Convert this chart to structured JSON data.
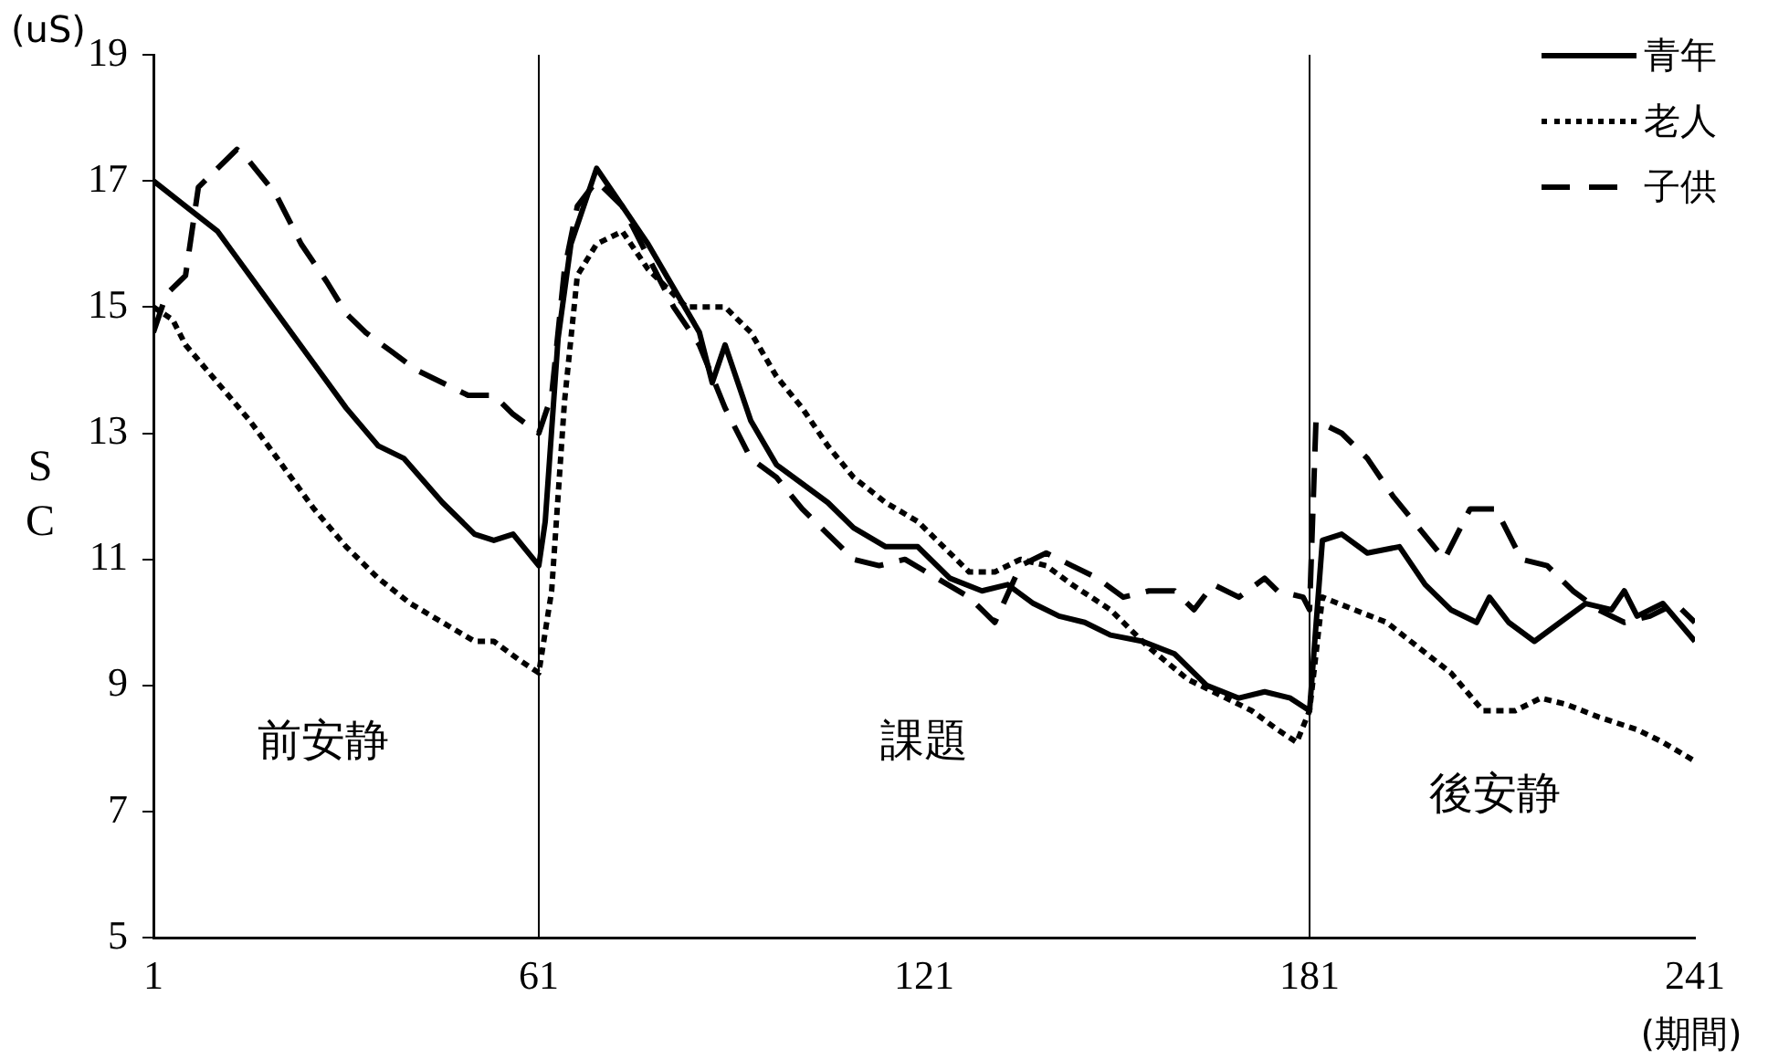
{
  "chart_data": {
    "type": "line",
    "xlabel": "(期間)",
    "ylabel": "SC",
    "xlim": [
      1,
      241
    ],
    "xticks": [
      1,
      61,
      121,
      181,
      241
    ],
    "ylim": [
      5,
      19
    ],
    "yticks": [
      5,
      7,
      9,
      11,
      13,
      15,
      17,
      19
    ],
    "grid": false,
    "legend": "top right",
    "marker": "none",
    "series": [
      {
        "name": "青年",
        "color": "#000000",
        "line_style": "solid",
        "x": [
          1,
          6,
          11,
          16,
          21,
          26,
          31,
          36,
          40,
          46,
          51,
          54,
          57,
          61,
          62,
          64,
          66,
          70,
          74,
          78,
          82,
          86,
          88,
          90,
          94,
          98,
          102,
          106,
          110,
          115,
          120,
          125,
          130,
          134,
          138,
          142,
          146,
          150,
          155,
          160,
          165,
          170,
          174,
          178,
          181,
          183,
          186,
          190,
          195,
          199,
          203,
          207,
          209,
          212,
          216,
          220,
          224,
          228,
          230,
          232,
          236,
          241
        ],
        "values": [
          17.0,
          16.6,
          16.2,
          15.5,
          14.8,
          14.1,
          13.4,
          12.8,
          12.6,
          11.9,
          11.4,
          11.3,
          11.4,
          10.9,
          11.6,
          14.5,
          16.0,
          17.2,
          16.6,
          16.0,
          15.3,
          14.6,
          13.8,
          14.4,
          13.2,
          12.5,
          12.2,
          11.9,
          11.5,
          11.2,
          11.2,
          10.7,
          10.5,
          10.6,
          10.3,
          10.1,
          10.0,
          9.8,
          9.7,
          9.5,
          9.0,
          8.8,
          8.9,
          8.8,
          8.6,
          11.3,
          11.4,
          11.1,
          11.2,
          10.6,
          10.2,
          10.0,
          10.4,
          10.0,
          9.7,
          10.0,
          10.3,
          10.2,
          10.5,
          10.1,
          10.3,
          9.7
        ]
      },
      {
        "name": "老人",
        "color": "#000000",
        "line_style": "dotted",
        "x": [
          1,
          4,
          6,
          11,
          16,
          21,
          26,
          31,
          36,
          41,
          46,
          51,
          54,
          58,
          61,
          63,
          65,
          67,
          70,
          74,
          78,
          84,
          90,
          94,
          98,
          102,
          106,
          110,
          115,
          120,
          125,
          128,
          132,
          136,
          140,
          144,
          150,
          156,
          162,
          168,
          172,
          176,
          179,
          181,
          183,
          188,
          193,
          198,
          203,
          208,
          213,
          217,
          221,
          226,
          232,
          236,
          241
        ],
        "values": [
          15.0,
          14.8,
          14.4,
          13.8,
          13.2,
          12.5,
          11.8,
          11.2,
          10.7,
          10.3,
          10.0,
          9.7,
          9.7,
          9.4,
          9.2,
          10.5,
          13.5,
          15.5,
          16.0,
          16.2,
          15.6,
          15.0,
          15.0,
          14.6,
          13.9,
          13.4,
          12.8,
          12.3,
          11.9,
          11.6,
          11.1,
          10.8,
          10.8,
          11.0,
          10.9,
          10.6,
          10.2,
          9.6,
          9.1,
          8.8,
          8.6,
          8.3,
          8.1,
          8.6,
          10.4,
          10.2,
          10.0,
          9.6,
          9.2,
          8.6,
          8.6,
          8.8,
          8.7,
          8.5,
          8.3,
          8.1,
          7.8
        ]
      },
      {
        "name": "子供",
        "color": "#000000",
        "line_style": "dashed",
        "x": [
          1,
          3,
          6,
          8,
          11,
          14,
          16,
          20,
          24,
          28,
          31,
          34,
          38,
          42,
          46,
          50,
          54,
          57,
          61,
          63,
          65,
          67,
          70,
          74,
          78,
          82,
          86,
          90,
          94,
          98,
          102,
          106,
          110,
          114,
          118,
          123,
          128,
          132,
          136,
          140,
          144,
          148,
          152,
          156,
          160,
          163,
          166,
          170,
          174,
          176,
          180,
          181,
          182,
          186,
          190,
          194,
          198,
          202,
          206,
          210,
          214,
          218,
          222,
          226,
          230,
          234,
          238,
          241
        ],
        "values": [
          14.6,
          15.2,
          15.5,
          16.9,
          17.2,
          17.5,
          17.3,
          16.8,
          16.0,
          15.4,
          14.9,
          14.6,
          14.3,
          14.0,
          13.8,
          13.6,
          13.6,
          13.3,
          13.0,
          13.6,
          15.6,
          16.6,
          17.0,
          16.6,
          15.8,
          15.0,
          14.4,
          13.4,
          12.6,
          12.3,
          11.8,
          11.4,
          11.0,
          10.9,
          11.0,
          10.7,
          10.4,
          10.0,
          10.9,
          11.1,
          10.9,
          10.7,
          10.4,
          10.5,
          10.5,
          10.2,
          10.6,
          10.4,
          10.7,
          10.5,
          10.4,
          10.2,
          13.2,
          13.0,
          12.6,
          12.0,
          11.5,
          11.0,
          11.8,
          11.8,
          11.0,
          10.9,
          10.5,
          10.2,
          10.0,
          10.1,
          10.3,
          10.0
        ]
      }
    ],
    "ref_lines": [
      {
        "axis": "x",
        "value": 61,
        "color": "#000000"
      },
      {
        "axis": "x",
        "value": 181,
        "color": "#000000"
      }
    ],
    "annotations": [
      "前安静",
      "課題",
      "後安静",
      "(uS)"
    ]
  }
}
